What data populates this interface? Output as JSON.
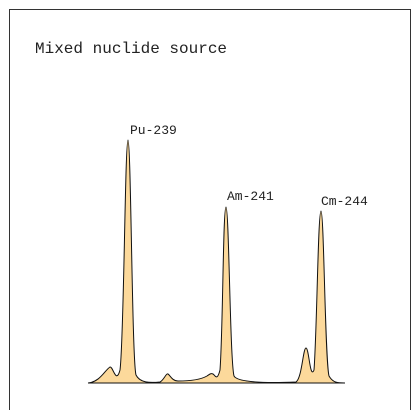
{
  "title": "Mixed nuclide source",
  "peaks": [
    {
      "label": "Pu-239"
    },
    {
      "label": "Am-241"
    },
    {
      "label": "Cm-244"
    }
  ]
}
